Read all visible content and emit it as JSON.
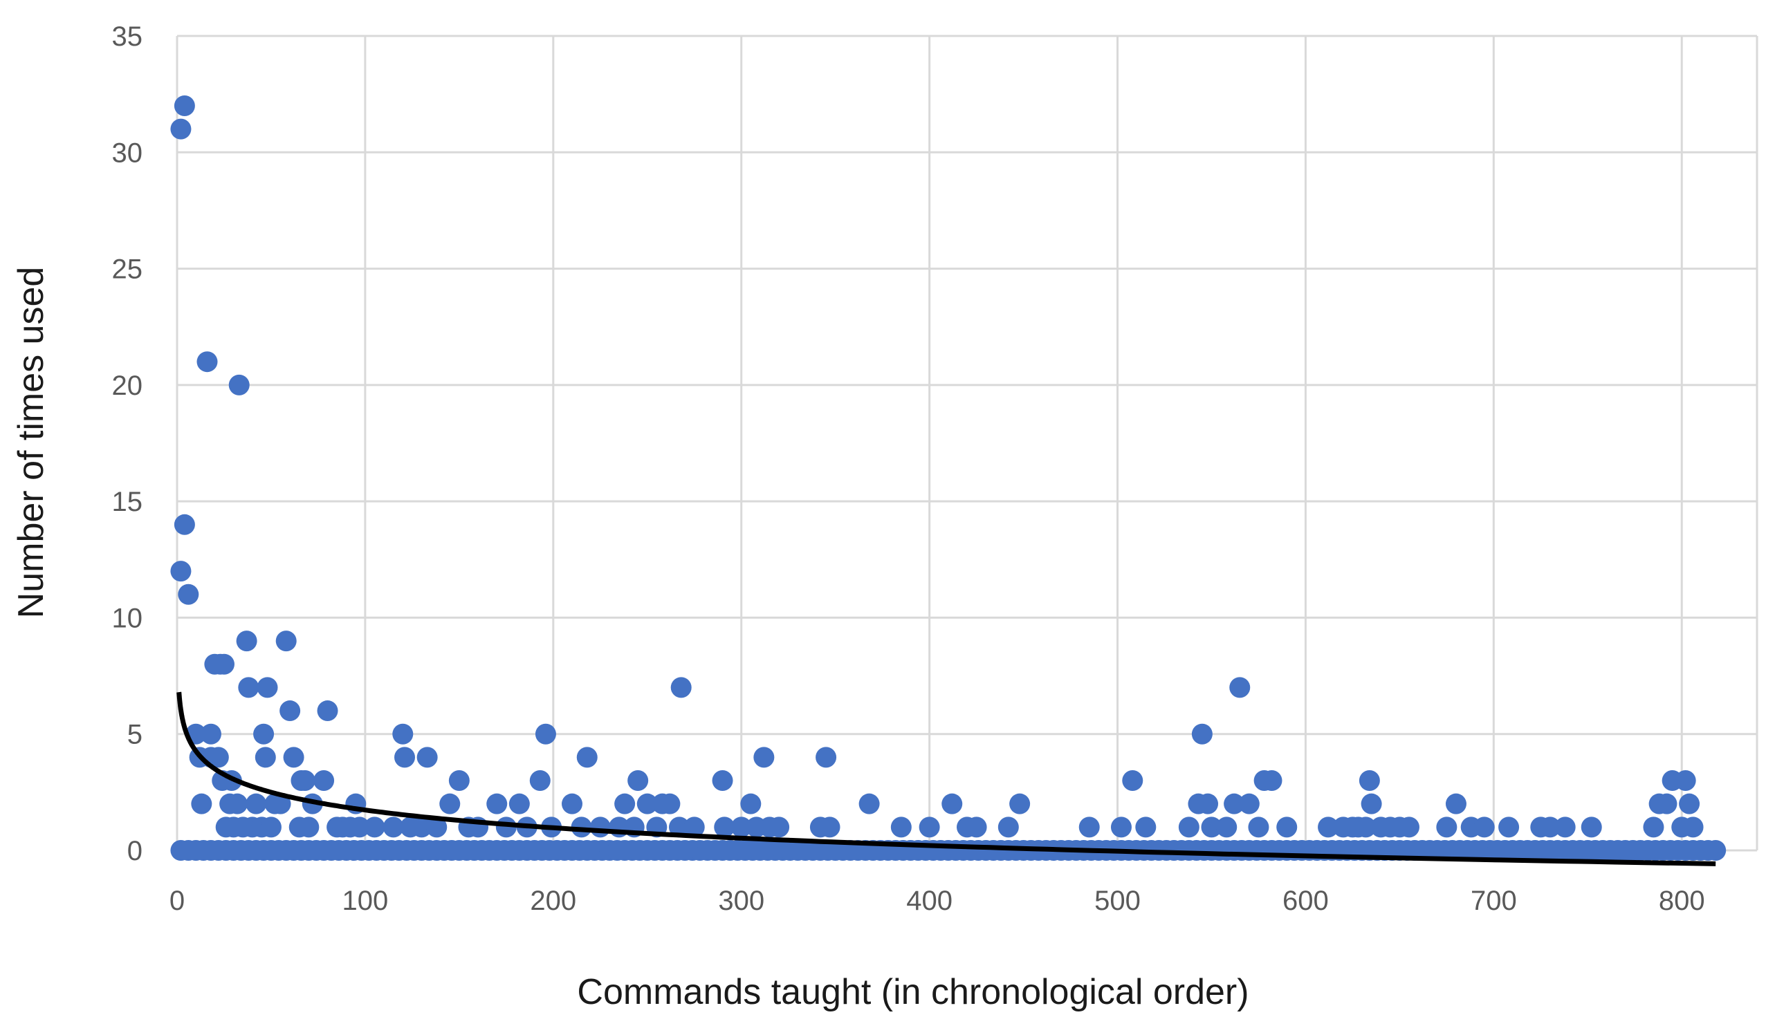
{
  "chart_data": {
    "type": "scatter",
    "title": "",
    "xlabel": "Commands taught (in chronological order)",
    "ylabel": "Number of times used",
    "xlim": [
      0,
      840
    ],
    "ylim": [
      0,
      35
    ],
    "x_ticks": [
      "0",
      "100",
      "200",
      "300",
      "400",
      "500",
      "600",
      "700",
      "800"
    ],
    "y_ticks": [
      "0",
      "5",
      "10",
      "15",
      "20",
      "25",
      "30",
      "35"
    ],
    "grid": true,
    "legend": "none",
    "colors": {
      "points": "#4472C4",
      "trendline": "#000000",
      "grid": "#d9d9d9"
    },
    "baseline": {
      "y": 0,
      "x_from": 2,
      "x_to": 818,
      "step": 4
    },
    "points": [
      [
        2,
        31
      ],
      [
        4,
        32
      ],
      [
        2,
        12
      ],
      [
        4,
        14
      ],
      [
        6,
        11
      ],
      [
        10,
        5
      ],
      [
        12,
        4
      ],
      [
        13,
        2
      ],
      [
        16,
        21
      ],
      [
        18,
        5
      ],
      [
        18,
        4
      ],
      [
        20,
        8
      ],
      [
        22,
        4
      ],
      [
        23,
        8
      ],
      [
        24,
        3
      ],
      [
        25,
        8
      ],
      [
        26,
        1
      ],
      [
        28,
        2
      ],
      [
        29,
        3
      ],
      [
        30,
        1
      ],
      [
        32,
        2
      ],
      [
        33,
        20
      ],
      [
        35,
        1
      ],
      [
        37,
        9
      ],
      [
        38,
        7
      ],
      [
        40,
        1
      ],
      [
        42,
        2
      ],
      [
        45,
        1
      ],
      [
        46,
        5
      ],
      [
        47,
        4
      ],
      [
        48,
        7
      ],
      [
        50,
        1
      ],
      [
        52,
        2
      ],
      [
        55,
        2
      ],
      [
        58,
        9
      ],
      [
        60,
        6
      ],
      [
        62,
        4
      ],
      [
        65,
        1
      ],
      [
        66,
        3
      ],
      [
        68,
        3
      ],
      [
        70,
        1
      ],
      [
        72,
        2
      ],
      [
        78,
        3
      ],
      [
        80,
        6
      ],
      [
        85,
        1
      ],
      [
        88,
        1
      ],
      [
        92,
        1
      ],
      [
        95,
        2
      ],
      [
        97,
        1
      ],
      [
        105,
        1
      ],
      [
        115,
        1
      ],
      [
        120,
        5
      ],
      [
        121,
        4
      ],
      [
        124,
        1
      ],
      [
        130,
        1
      ],
      [
        133,
        4
      ],
      [
        138,
        1
      ],
      [
        145,
        2
      ],
      [
        150,
        3
      ],
      [
        155,
        1
      ],
      [
        160,
        1
      ],
      [
        170,
        2
      ],
      [
        175,
        1
      ],
      [
        182,
        2
      ],
      [
        186,
        1
      ],
      [
        193,
        3
      ],
      [
        196,
        5
      ],
      [
        199,
        1
      ],
      [
        210,
        2
      ],
      [
        215,
        1
      ],
      [
        218,
        4
      ],
      [
        225,
        1
      ],
      [
        235,
        1
      ],
      [
        238,
        2
      ],
      [
        243,
        1
      ],
      [
        245,
        3
      ],
      [
        250,
        2
      ],
      [
        255,
        1
      ],
      [
        258,
        2
      ],
      [
        262,
        2
      ],
      [
        267,
        1
      ],
      [
        268,
        7
      ],
      [
        275,
        1
      ],
      [
        290,
        3
      ],
      [
        291,
        1
      ],
      [
        300,
        1
      ],
      [
        305,
        2
      ],
      [
        308,
        1
      ],
      [
        312,
        4
      ],
      [
        315,
        1
      ],
      [
        320,
        1
      ],
      [
        342,
        1
      ],
      [
        345,
        4
      ],
      [
        347,
        1
      ],
      [
        368,
        2
      ],
      [
        385,
        1
      ],
      [
        400,
        1
      ],
      [
        412,
        2
      ],
      [
        420,
        1
      ],
      [
        425,
        1
      ],
      [
        442,
        1
      ],
      [
        448,
        2
      ],
      [
        485,
        1
      ],
      [
        502,
        1
      ],
      [
        508,
        3
      ],
      [
        515,
        1
      ],
      [
        538,
        1
      ],
      [
        543,
        2
      ],
      [
        545,
        5
      ],
      [
        548,
        2
      ],
      [
        550,
        1
      ],
      [
        558,
        1
      ],
      [
        562,
        2
      ],
      [
        565,
        7
      ],
      [
        570,
        2
      ],
      [
        575,
        1
      ],
      [
        578,
        3
      ],
      [
        582,
        3
      ],
      [
        590,
        1
      ],
      [
        612,
        1
      ],
      [
        620,
        1
      ],
      [
        625,
        1
      ],
      [
        628,
        1
      ],
      [
        632,
        1
      ],
      [
        634,
        3
      ],
      [
        635,
        2
      ],
      [
        640,
        1
      ],
      [
        645,
        1
      ],
      [
        650,
        1
      ],
      [
        655,
        1
      ],
      [
        675,
        1
      ],
      [
        680,
        2
      ],
      [
        688,
        1
      ],
      [
        695,
        1
      ],
      [
        708,
        1
      ],
      [
        725,
        1
      ],
      [
        730,
        1
      ],
      [
        738,
        1
      ],
      [
        752,
        1
      ],
      [
        785,
        1
      ],
      [
        788,
        2
      ],
      [
        792,
        2
      ],
      [
        795,
        3
      ],
      [
        800,
        1
      ],
      [
        802,
        3
      ],
      [
        804,
        2
      ],
      [
        806,
        1
      ]
    ],
    "trendline": {
      "type": "logarithmic",
      "a": 6.8,
      "b": -1.1,
      "x_from": 1,
      "x_to": 818
    }
  }
}
